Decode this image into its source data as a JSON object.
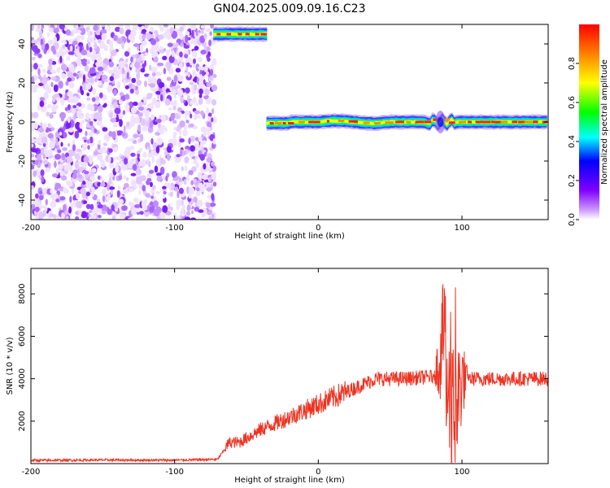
{
  "title": "GN04.2025.009.09.16.C23",
  "chart_data": [
    {
      "type": "heatmap",
      "xlabel": "Height of straight line (km)",
      "ylabel": "Frequency (Hz)",
      "xlim": [
        -200,
        160
      ],
      "ylim": [
        -50,
        50
      ],
      "x_ticks": [
        -200,
        -100,
        0,
        100
      ],
      "y_ticks": [
        -40,
        -20,
        0,
        20,
        40
      ],
      "colorbar": {
        "label": "Normalized spectral amplitude",
        "range": [
          0,
          1
        ],
        "ticks": [
          "0.0",
          "0.2",
          "0.4",
          "0.6",
          "0.8"
        ],
        "colors": [
          "#ffffff",
          "#8000ff",
          "#0000ff",
          "#00ffff",
          "#00ff00",
          "#ffff00",
          "#ff8000",
          "#ff0000"
        ]
      },
      "regions": [
        {
          "description": "broadband noise",
          "x_range": [
            -200,
            -72
          ],
          "y_range": [
            -50,
            50
          ],
          "amplitude": 0.1
        },
        {
          "description": "signal line",
          "x_range": [
            -73,
            -35
          ],
          "frequency": 45,
          "amplitude": 1.0
        },
        {
          "description": "signal line",
          "x_range": [
            -36,
            160
          ],
          "frequency": 0,
          "amplitude": 1.0
        }
      ]
    },
    {
      "type": "line",
      "xlabel": "Height of straight line (km)",
      "ylabel": "SNR (10 * v/v)",
      "xlim": [
        -200,
        160
      ],
      "ylim": [
        0,
        9200
      ],
      "x_ticks": [
        -200,
        -100,
        0,
        100
      ],
      "y_ticks": [
        2000,
        4000,
        6000,
        8000
      ],
      "color": "#ee3322",
      "x": [
        -200,
        -150,
        -100,
        -70,
        -62,
        -55,
        -40,
        -20,
        0,
        20,
        40,
        60,
        80,
        85,
        88,
        90,
        92,
        95,
        100,
        105,
        110,
        130,
        160
      ],
      "y": [
        150,
        170,
        160,
        200,
        1000,
        1000,
        1600,
        2200,
        2800,
        3400,
        4000,
        4000,
        4100,
        5000,
        6500,
        3000,
        1500,
        2500,
        4000,
        4000,
        4000,
        4000,
        4000
      ]
    }
  ]
}
